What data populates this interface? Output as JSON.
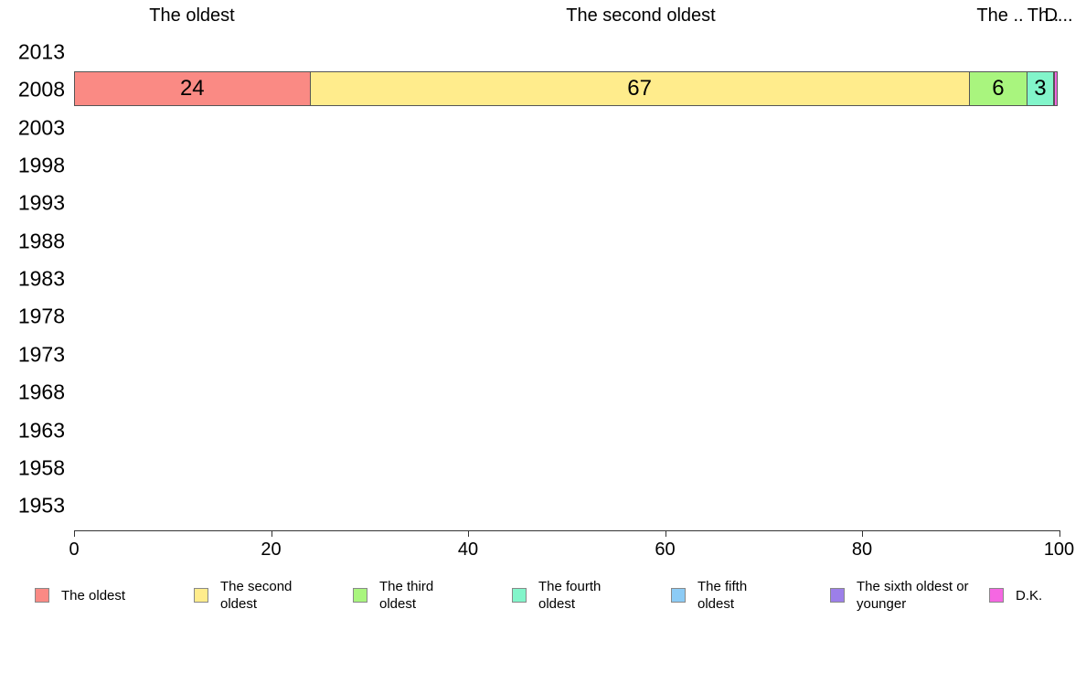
{
  "chart_data": {
    "type": "bar",
    "orientation": "horizontal",
    "stacked": true,
    "title": "",
    "categories": [
      "2013",
      "2008",
      "2003",
      "1998",
      "1993",
      "1988",
      "1983",
      "1978",
      "1973",
      "1968",
      "1963",
      "1958",
      "1953"
    ],
    "series": [
      {
        "name": "The oldest",
        "color": "#fa8a84",
        "values": {
          "2008": 24
        },
        "bar_label": "24"
      },
      {
        "name": "The second oldest",
        "color": "#ffec8c",
        "values": {
          "2008": 67
        },
        "bar_label": "67"
      },
      {
        "name": "The third oldest",
        "color": "#a9f57e",
        "values": {
          "2008": 6
        },
        "bar_label": "6"
      },
      {
        "name": "The fourth oldest",
        "color": "#82f5ca",
        "values": {
          "2008": 3
        },
        "bar_label": "3"
      },
      {
        "name": "The fifth oldest",
        "color": "#8ccbf5",
        "values": {
          "2008": 0
        },
        "bar_label": ""
      },
      {
        "name": "The sixth oldest or younger",
        "color": "#9c7fe9",
        "values": {
          "2008": 0.1
        },
        "bar_label": ""
      },
      {
        "name": "D.K.",
        "color": "#f567e2",
        "values": {
          "2008": 0.4
        },
        "bar_label": ""
      }
    ],
    "x_axis": {
      "tick_labels": [
        "0",
        "20",
        "40",
        "60",
        "80",
        "100"
      ],
      "range": [
        0,
        100
      ]
    },
    "grid": false,
    "legend_position": "bottom"
  },
  "segment_header_labels": [
    "The oldest",
    "The second oldest",
    "The ..",
    "Th..",
    "D..."
  ],
  "legend": {
    "items": [
      {
        "label": "The oldest",
        "color": "#fa8a84"
      },
      {
        "label": "The second oldest",
        "color": "#ffec8c"
      },
      {
        "label": "The third oldest",
        "color": "#a9f57e"
      },
      {
        "label": "The fourth oldest",
        "color": "#82f5ca"
      },
      {
        "label": "The fifth oldest",
        "color": "#8ccbf5"
      },
      {
        "label": "The sixth oldest or younger",
        "color": "#9c7fe9"
      },
      {
        "label": "D.K.",
        "color": "#f567e2"
      }
    ]
  }
}
